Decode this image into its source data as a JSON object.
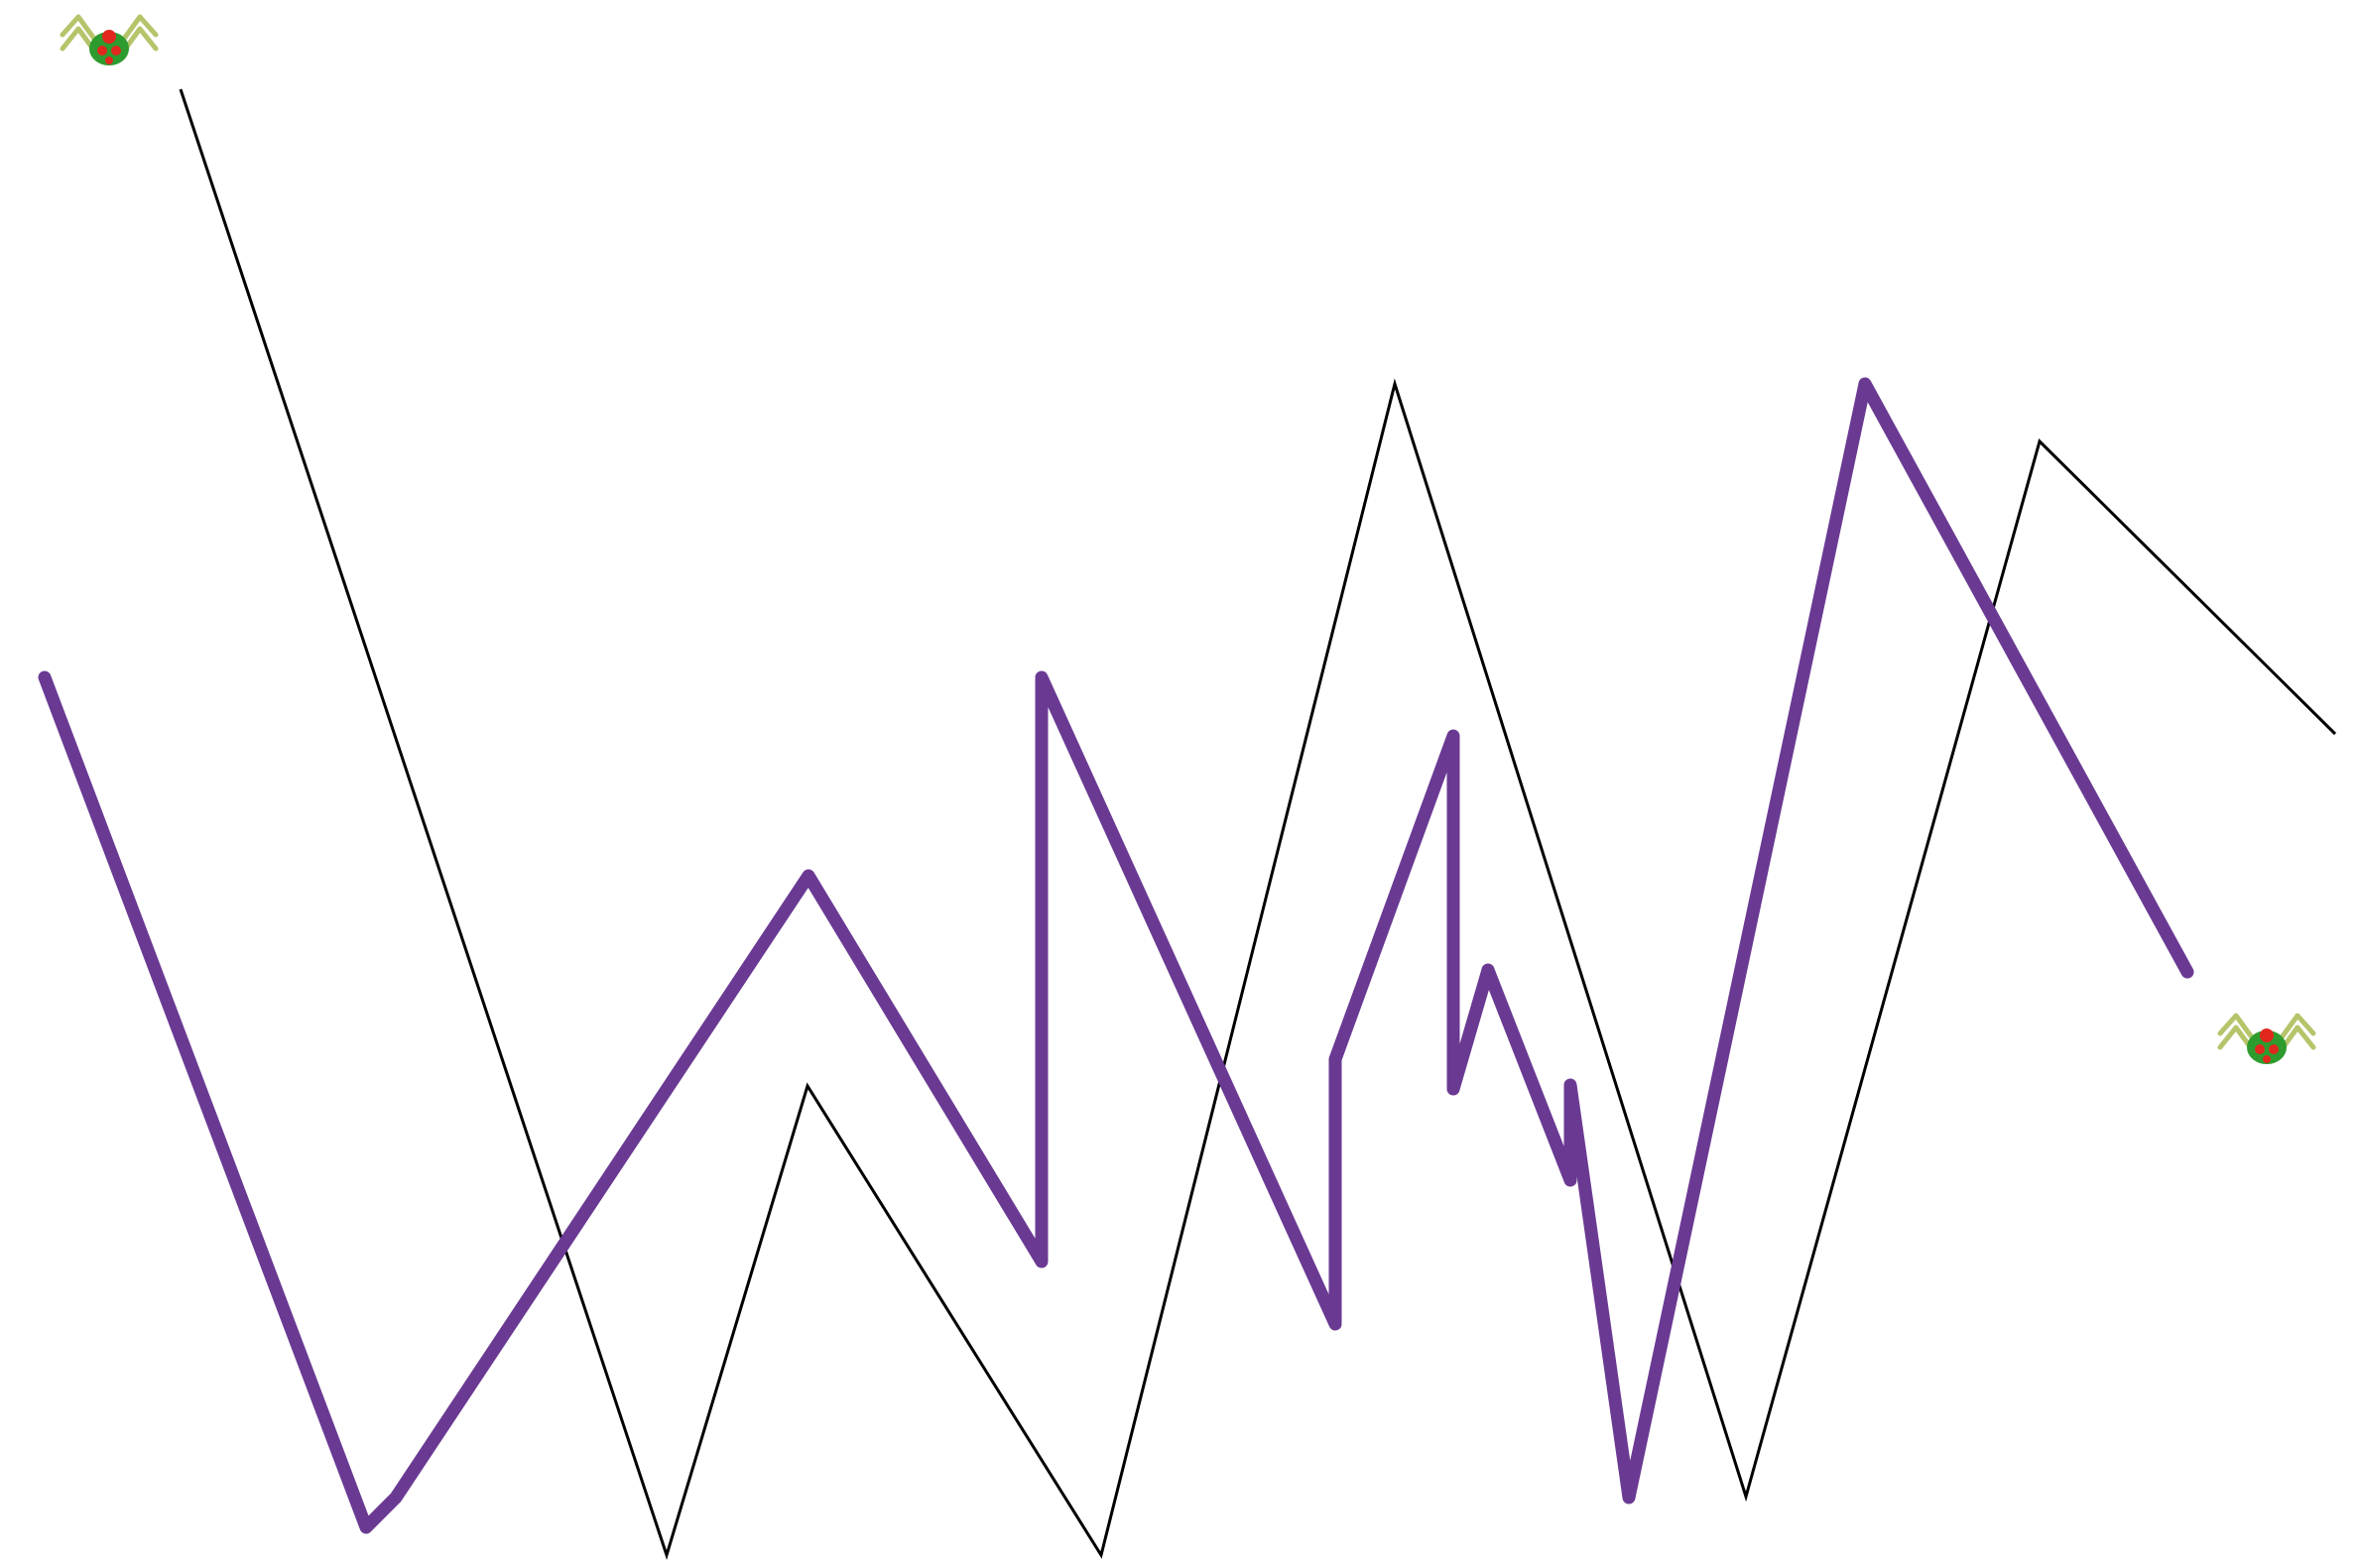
{
  "scene": {
    "background": "#ffffff",
    "thin_path_color": "#000000",
    "thick_path_color": "#6a3a93"
  },
  "sprites": [
    {
      "name": "spider-sprite-top",
      "icon": "spider-icon",
      "body_color": "#2e9b2e",
      "spot_color": "#e0281e",
      "leg_color": "#b6c46a"
    },
    {
      "name": "spider-sprite-bottom",
      "icon": "spider-icon",
      "body_color": "#2e9b2e",
      "spot_color": "#e0281e",
      "leg_color": "#b6c46a"
    }
  ]
}
